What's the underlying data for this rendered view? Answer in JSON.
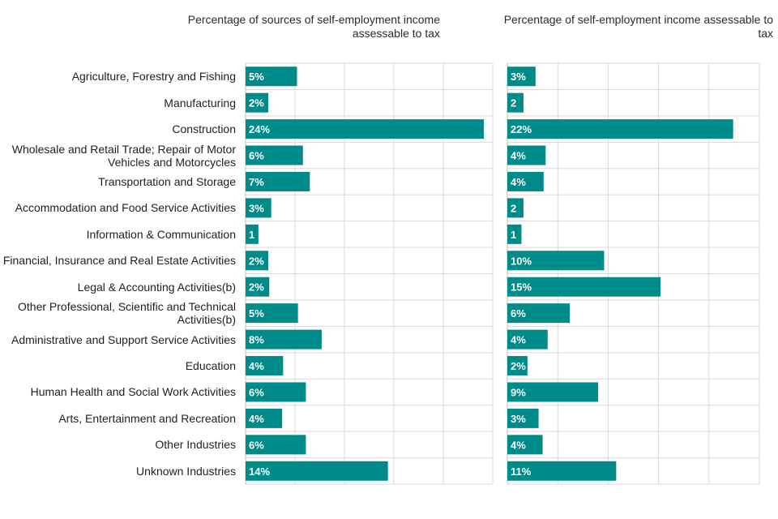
{
  "chart_data": {
    "type": "bar",
    "orientation": "horizontal",
    "bar_color": "#008b8b",
    "categories": [
      "Agriculture, Forestry and Fishing",
      "Manufacturing",
      "Construction",
      "Wholesale and Retail Trade; Repair of Motor Vehicles and Motorcycles",
      "Transportation and Storage",
      "Accommodation and Food Service Activities",
      "Information & Communication",
      "Financial, Insurance and Real Estate Activities",
      "Legal & Accounting Activities(b)",
      "Other Professional, Scientific and Technical Activities(b)",
      "Administrative and Support Service Activities",
      "Education",
      "Human Health and Social Work Activities",
      "Arts, Entertainment and Recreation",
      "Other Industries",
      "Unknown Industries"
    ],
    "panels": [
      {
        "title": "Percentage of sources of self-employment income assessable to tax",
        "xlim": [
          0,
          25
        ],
        "values": [
          5.2,
          2.3,
          24.1,
          5.8,
          6.5,
          2.6,
          1.3,
          2.3,
          2.4,
          5.3,
          7.7,
          3.8,
          6.1,
          3.7,
          6.1,
          14.4
        ],
        "labels": [
          "5%",
          "2%",
          "24%",
          "6%",
          "7%",
          "3%",
          "1",
          "2%",
          "2%",
          "5%",
          "8%",
          "4%",
          "6%",
          "4%",
          "6%",
          "14%"
        ]
      },
      {
        "title": "Percentage of self-employment income assessable to tax",
        "xlim": [
          0,
          25
        ],
        "values": [
          2.8,
          1.6,
          22.4,
          3.8,
          3.6,
          1.6,
          1.4,
          9.6,
          15.2,
          6.2,
          4.0,
          2.0,
          9.0,
          3.1,
          3.5,
          10.8
        ],
        "labels": [
          "3%",
          "2",
          "22%",
          "4%",
          "4%",
          "2",
          "1",
          "10%",
          "15%",
          "6%",
          "4%",
          "2%",
          "9%",
          "3%",
          "4%",
          "11%"
        ]
      }
    ]
  }
}
